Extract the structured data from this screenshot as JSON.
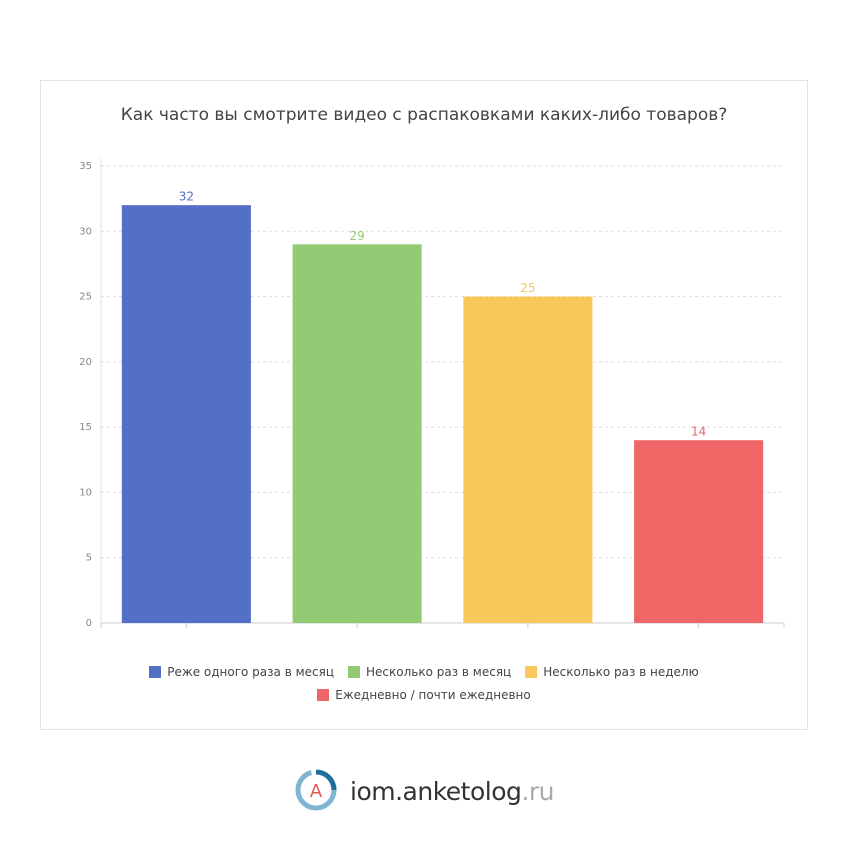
{
  "chart_data": {
    "type": "bar",
    "title": "Как часто вы смотрите видео с распаковками каких-либо товаров?",
    "categories": [
      "Реже одного раза в месяц",
      "Несколько раз в месяц",
      "Несколько раз в неделю",
      "Ежедневно / почти ежедневно"
    ],
    "values": [
      32,
      29,
      25,
      14
    ],
    "colors": [
      "#5470c6",
      "#93cb75",
      "#f8c85b",
      "#ee6666"
    ],
    "ylim": [
      0,
      35
    ],
    "yticks": [
      0,
      5,
      10,
      15,
      20,
      25,
      30,
      35
    ],
    "grid": true
  },
  "footer": {
    "logo_letter": "А",
    "brand": "iom.anketolog",
    "tld": ".ru"
  }
}
